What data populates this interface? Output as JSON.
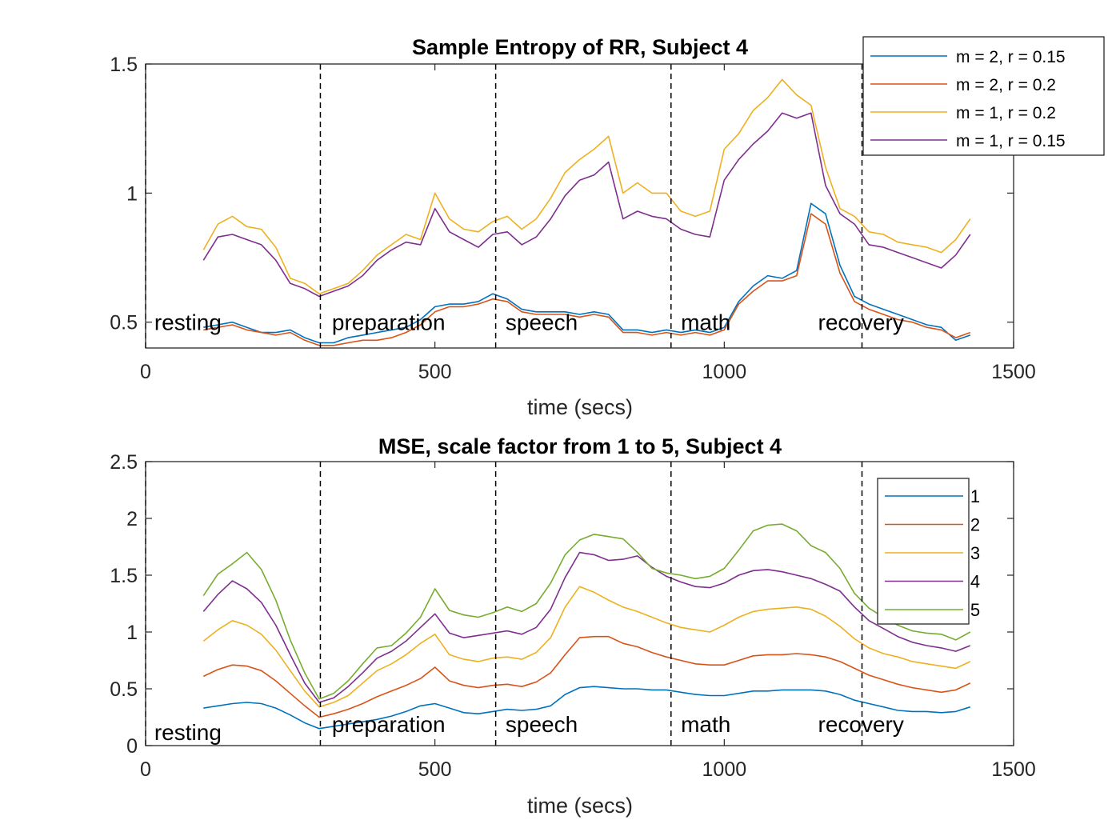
{
  "chart_data": [
    {
      "type": "line",
      "title": "Sample Entropy of RR, Subject 4",
      "xlabel": "time (secs)",
      "ylabel": "",
      "xlim": [
        0,
        1500
      ],
      "ylim": [
        0.4,
        1.5
      ],
      "xticks": [
        "0",
        "500",
        "1000",
        "1500"
      ],
      "yticks": [
        "0.5",
        "1",
        "1.5"
      ],
      "ytick_values": [
        0.5,
        1,
        1.5
      ],
      "grid": false,
      "legend_position": "top-right",
      "phase_boundaries": [
        302,
        605,
        908,
        1238
      ],
      "phases": [
        {
          "label": "resting",
          "x": 15,
          "y": 0.5
        },
        {
          "label": "preparation",
          "x": 322,
          "y": 0.5
        },
        {
          "label": "speech",
          "x": 622,
          "y": 0.5
        },
        {
          "label": "math",
          "x": 925,
          "y": 0.5
        },
        {
          "label": "recovery",
          "x": 1162,
          "y": 0.5
        }
      ],
      "x": [
        100,
        125,
        150,
        175,
        200,
        225,
        250,
        275,
        300,
        325,
        350,
        375,
        400,
        425,
        450,
        475,
        500,
        525,
        550,
        575,
        600,
        625,
        650,
        675,
        700,
        725,
        750,
        775,
        800,
        825,
        850,
        875,
        900,
        925,
        950,
        975,
        1000,
        1025,
        1050,
        1075,
        1100,
        1125,
        1150,
        1175,
        1200,
        1225,
        1250,
        1275,
        1300,
        1325,
        1350,
        1375,
        1400,
        1425
      ],
      "series": [
        {
          "name": "m = 2, r = 0.15",
          "color": "#0072BD",
          "values": [
            0.48,
            0.49,
            0.5,
            0.48,
            0.46,
            0.46,
            0.47,
            0.44,
            0.42,
            0.42,
            0.44,
            0.45,
            0.46,
            0.47,
            0.48,
            0.51,
            0.56,
            0.57,
            0.57,
            0.58,
            0.61,
            0.59,
            0.55,
            0.54,
            0.54,
            0.54,
            0.53,
            0.54,
            0.53,
            0.47,
            0.47,
            0.46,
            0.47,
            0.46,
            0.47,
            0.46,
            0.48,
            0.58,
            0.64,
            0.68,
            0.67,
            0.7,
            0.96,
            0.92,
            0.72,
            0.6,
            0.57,
            0.55,
            0.53,
            0.51,
            0.49,
            0.48,
            0.43,
            0.45
          ]
        },
        {
          "name": "m = 2, r = 0.2",
          "color": "#D95319",
          "values": [
            0.47,
            0.48,
            0.49,
            0.47,
            0.46,
            0.45,
            0.46,
            0.43,
            0.41,
            0.41,
            0.42,
            0.43,
            0.43,
            0.44,
            0.46,
            0.49,
            0.54,
            0.56,
            0.56,
            0.57,
            0.59,
            0.58,
            0.54,
            0.53,
            0.53,
            0.53,
            0.52,
            0.53,
            0.52,
            0.46,
            0.46,
            0.45,
            0.46,
            0.45,
            0.46,
            0.45,
            0.47,
            0.57,
            0.62,
            0.66,
            0.66,
            0.68,
            0.92,
            0.88,
            0.69,
            0.58,
            0.55,
            0.53,
            0.51,
            0.5,
            0.48,
            0.47,
            0.44,
            0.46
          ]
        },
        {
          "name": "m = 1, r = 0.2",
          "color": "#EDB120",
          "values": [
            0.78,
            0.88,
            0.91,
            0.87,
            0.86,
            0.79,
            0.67,
            0.65,
            0.61,
            0.63,
            0.65,
            0.7,
            0.76,
            0.8,
            0.84,
            0.82,
            1.0,
            0.9,
            0.86,
            0.85,
            0.89,
            0.91,
            0.86,
            0.9,
            0.98,
            1.08,
            1.13,
            1.17,
            1.22,
            1.0,
            1.04,
            1.0,
            1.0,
            0.93,
            0.91,
            0.93,
            1.17,
            1.23,
            1.32,
            1.37,
            1.44,
            1.38,
            1.34,
            1.1,
            0.94,
            0.91,
            0.85,
            0.84,
            0.81,
            0.8,
            0.79,
            0.77,
            0.82,
            0.9
          ]
        },
        {
          "name": "m = 1, r = 0.15",
          "color": "#7E2F8E",
          "values": [
            0.74,
            0.83,
            0.84,
            0.82,
            0.8,
            0.74,
            0.65,
            0.63,
            0.6,
            0.62,
            0.64,
            0.68,
            0.74,
            0.78,
            0.81,
            0.8,
            0.94,
            0.85,
            0.82,
            0.79,
            0.84,
            0.85,
            0.8,
            0.83,
            0.9,
            0.99,
            1.05,
            1.07,
            1.12,
            0.9,
            0.93,
            0.91,
            0.9,
            0.86,
            0.84,
            0.83,
            1.05,
            1.13,
            1.19,
            1.24,
            1.31,
            1.29,
            1.31,
            1.03,
            0.92,
            0.88,
            0.8,
            0.79,
            0.77,
            0.75,
            0.73,
            0.71,
            0.76,
            0.84
          ]
        }
      ]
    },
    {
      "type": "line",
      "title": "MSE, scale factor from 1 to 5, Subject 4",
      "xlabel": "time (secs)",
      "ylabel": "",
      "xlim": [
        0,
        1500
      ],
      "ylim": [
        0,
        2.5
      ],
      "xticks": [
        "0",
        "500",
        "1000",
        "1500"
      ],
      "yticks": [
        "0",
        "0.5",
        "1",
        "1.5",
        "2",
        "2.5"
      ],
      "ytick_values": [
        0,
        0.5,
        1,
        1.5,
        2,
        2.5
      ],
      "grid": false,
      "legend_position": "top-right",
      "phase_boundaries": [
        302,
        605,
        908,
        1238
      ],
      "phases": [
        {
          "label": "resting",
          "x": 15,
          "y": 0.12
        },
        {
          "label": "preparation",
          "x": 322,
          "y": 0.19
        },
        {
          "label": "speech",
          "x": 622,
          "y": 0.19
        },
        {
          "label": "math",
          "x": 925,
          "y": 0.19
        },
        {
          "label": "recovery",
          "x": 1162,
          "y": 0.19
        }
      ],
      "x": [
        100,
        125,
        150,
        175,
        200,
        225,
        250,
        275,
        300,
        325,
        350,
        375,
        400,
        425,
        450,
        475,
        500,
        525,
        550,
        575,
        600,
        625,
        650,
        675,
        700,
        725,
        750,
        775,
        800,
        825,
        850,
        875,
        900,
        925,
        950,
        975,
        1000,
        1025,
        1050,
        1075,
        1100,
        1125,
        1150,
        1175,
        1200,
        1225,
        1250,
        1275,
        1300,
        1325,
        1350,
        1375,
        1400,
        1425
      ],
      "series": [
        {
          "name": "1",
          "color": "#0072BD",
          "values": [
            0.33,
            0.35,
            0.37,
            0.38,
            0.37,
            0.33,
            0.27,
            0.2,
            0.15,
            0.17,
            0.19,
            0.21,
            0.23,
            0.26,
            0.3,
            0.35,
            0.37,
            0.33,
            0.29,
            0.28,
            0.3,
            0.32,
            0.31,
            0.32,
            0.35,
            0.45,
            0.51,
            0.52,
            0.51,
            0.5,
            0.5,
            0.49,
            0.49,
            0.47,
            0.45,
            0.44,
            0.44,
            0.46,
            0.48,
            0.48,
            0.49,
            0.49,
            0.49,
            0.48,
            0.45,
            0.4,
            0.37,
            0.34,
            0.31,
            0.3,
            0.3,
            0.29,
            0.3,
            0.34
          ]
        },
        {
          "name": "2",
          "color": "#D95319",
          "values": [
            0.61,
            0.67,
            0.71,
            0.7,
            0.66,
            0.57,
            0.46,
            0.35,
            0.25,
            0.28,
            0.32,
            0.37,
            0.43,
            0.48,
            0.53,
            0.59,
            0.69,
            0.57,
            0.53,
            0.51,
            0.53,
            0.54,
            0.52,
            0.56,
            0.64,
            0.8,
            0.95,
            0.96,
            0.96,
            0.9,
            0.87,
            0.82,
            0.78,
            0.75,
            0.72,
            0.71,
            0.71,
            0.75,
            0.79,
            0.8,
            0.8,
            0.81,
            0.8,
            0.78,
            0.74,
            0.68,
            0.62,
            0.58,
            0.54,
            0.51,
            0.49,
            0.47,
            0.49,
            0.55
          ]
        },
        {
          "name": "3",
          "color": "#EDB120",
          "values": [
            0.92,
            1.02,
            1.1,
            1.06,
            0.98,
            0.84,
            0.66,
            0.48,
            0.34,
            0.38,
            0.44,
            0.55,
            0.66,
            0.72,
            0.8,
            0.9,
            0.98,
            0.8,
            0.76,
            0.74,
            0.77,
            0.78,
            0.76,
            0.82,
            0.95,
            1.22,
            1.4,
            1.35,
            1.28,
            1.22,
            1.18,
            1.13,
            1.08,
            1.04,
            1.02,
            1.0,
            1.06,
            1.13,
            1.18,
            1.2,
            1.21,
            1.22,
            1.2,
            1.14,
            1.05,
            0.94,
            0.86,
            0.81,
            0.78,
            0.74,
            0.72,
            0.7,
            0.68,
            0.74
          ]
        },
        {
          "name": "4",
          "color": "#7E2F8E",
          "values": [
            1.18,
            1.33,
            1.45,
            1.38,
            1.26,
            1.06,
            0.8,
            0.55,
            0.38,
            0.42,
            0.52,
            0.64,
            0.77,
            0.83,
            0.92,
            1.04,
            1.16,
            0.99,
            0.95,
            0.97,
            0.99,
            1.01,
            0.98,
            1.04,
            1.2,
            1.48,
            1.7,
            1.68,
            1.63,
            1.64,
            1.67,
            1.57,
            1.49,
            1.44,
            1.4,
            1.39,
            1.43,
            1.5,
            1.54,
            1.55,
            1.53,
            1.5,
            1.47,
            1.42,
            1.36,
            1.22,
            1.1,
            1.03,
            0.96,
            0.91,
            0.88,
            0.86,
            0.83,
            0.88
          ]
        },
        {
          "name": "5",
          "color": "#77AC30",
          "values": [
            1.32,
            1.51,
            1.6,
            1.7,
            1.55,
            1.28,
            0.93,
            0.64,
            0.41,
            0.46,
            0.57,
            0.72,
            0.86,
            0.88,
            0.99,
            1.13,
            1.38,
            1.19,
            1.15,
            1.13,
            1.17,
            1.22,
            1.18,
            1.25,
            1.43,
            1.68,
            1.81,
            1.86,
            1.84,
            1.82,
            1.7,
            1.56,
            1.52,
            1.5,
            1.47,
            1.49,
            1.56,
            1.72,
            1.89,
            1.94,
            1.95,
            1.89,
            1.76,
            1.7,
            1.56,
            1.34,
            1.21,
            1.13,
            1.06,
            1.01,
            0.99,
            0.98,
            0.93,
            1.0
          ]
        }
      ]
    }
  ]
}
